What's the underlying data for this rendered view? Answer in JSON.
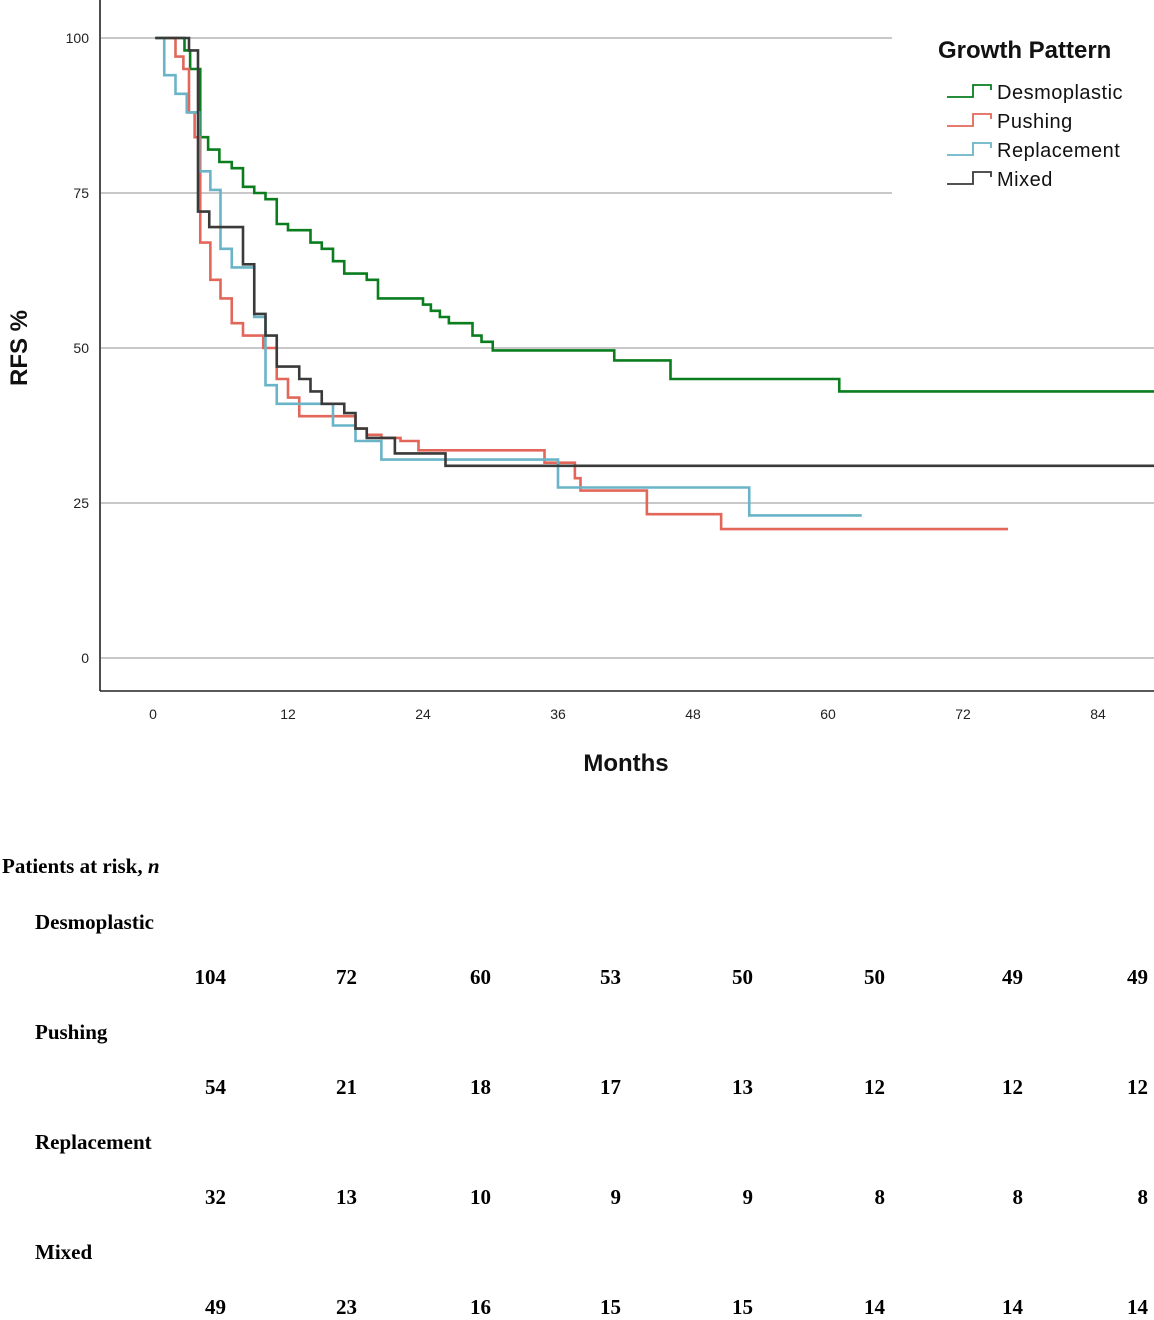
{
  "chart_data": {
    "type": "line",
    "subtype": "kaplan-meier-step",
    "title": "",
    "xlabel": "Months",
    "ylabel": "RFS %",
    "xlim": [
      -4.5,
      89
    ],
    "ylim": [
      -5,
      105
    ],
    "x_ticks": [
      0,
      12,
      24,
      36,
      48,
      60,
      72,
      84
    ],
    "y_ticks": [
      0,
      25,
      50,
      75,
      100
    ],
    "grid": "horizontal",
    "legend": {
      "title": "Growth Pattern",
      "placement": "top-right"
    },
    "series": [
      {
        "name": "Desmoplastic",
        "color": "#0a7d1e",
        "steps": [
          [
            0.2,
            100
          ],
          [
            2.8,
            98
          ],
          [
            3.3,
            95
          ],
          [
            4.2,
            84
          ],
          [
            4.9,
            82
          ],
          [
            5.9,
            80
          ],
          [
            7.0,
            79
          ],
          [
            8.0,
            76
          ],
          [
            9.0,
            75
          ],
          [
            10.0,
            74
          ],
          [
            11.0,
            70
          ],
          [
            12.0,
            69
          ],
          [
            14.0,
            67
          ],
          [
            15.0,
            66
          ],
          [
            16.0,
            64
          ],
          [
            17.0,
            62
          ],
          [
            19.0,
            61
          ],
          [
            20.0,
            58
          ],
          [
            24.0,
            57
          ],
          [
            24.7,
            56
          ],
          [
            25.5,
            55
          ],
          [
            26.3,
            54
          ],
          [
            28.4,
            52
          ],
          [
            29.2,
            51
          ],
          [
            30.2,
            49.6
          ],
          [
            41.0,
            48
          ],
          [
            46.0,
            45
          ],
          [
            61.0,
            43
          ],
          [
            89.0,
            43
          ]
        ]
      },
      {
        "name": "Pushing",
        "color": "#e2675a",
        "steps": [
          [
            1.0,
            100
          ],
          [
            2.0,
            97
          ],
          [
            2.7,
            95
          ],
          [
            3.2,
            88
          ],
          [
            3.7,
            84
          ],
          [
            4.2,
            67
          ],
          [
            5.1,
            61
          ],
          [
            6.0,
            58
          ],
          [
            7.0,
            54
          ],
          [
            8.0,
            52
          ],
          [
            9.8,
            50
          ],
          [
            11.0,
            45
          ],
          [
            12.0,
            42
          ],
          [
            13.0,
            39
          ],
          [
            18.0,
            37
          ],
          [
            19.0,
            36
          ],
          [
            20.3,
            35.5
          ],
          [
            22.0,
            35
          ],
          [
            23.6,
            33.5
          ],
          [
            34.8,
            31.5
          ],
          [
            37.5,
            29
          ],
          [
            38.0,
            27
          ],
          [
            43.9,
            23.2
          ],
          [
            50.5,
            20.8
          ],
          [
            76.0,
            20.8
          ]
        ]
      },
      {
        "name": "Replacement",
        "color": "#6ab4c8",
        "steps": [
          [
            0.7,
            100
          ],
          [
            1.0,
            94
          ],
          [
            2.0,
            91
          ],
          [
            3.0,
            88
          ],
          [
            4.1,
            78.5
          ],
          [
            5.1,
            75.5
          ],
          [
            6.0,
            66
          ],
          [
            7.0,
            63
          ],
          [
            9.0,
            55
          ],
          [
            10.0,
            44
          ],
          [
            11.0,
            41
          ],
          [
            16.0,
            37.5
          ],
          [
            18.0,
            35
          ],
          [
            20.3,
            32
          ],
          [
            36.0,
            27.5
          ],
          [
            53.0,
            23
          ],
          [
            63.0,
            23
          ]
        ]
      },
      {
        "name": "Mixed",
        "color": "#3a3a3a",
        "steps": [
          [
            0.2,
            100
          ],
          [
            3.2,
            98
          ],
          [
            4.0,
            72
          ],
          [
            5.0,
            69.5
          ],
          [
            8.0,
            63.5
          ],
          [
            9.0,
            55.5
          ],
          [
            10.0,
            52
          ],
          [
            11.0,
            47
          ],
          [
            13.0,
            45
          ],
          [
            14.0,
            43
          ],
          [
            15.0,
            41
          ],
          [
            17.0,
            39.5
          ],
          [
            18.0,
            37
          ],
          [
            19.0,
            35.5
          ],
          [
            21.5,
            33
          ],
          [
            26.0,
            31
          ],
          [
            89.0,
            31
          ]
        ]
      }
    ],
    "risk_table": {
      "title": "Patients at risk, ",
      "title_italic": "n",
      "columns": [
        "0",
        "12",
        "24",
        "36",
        "48",
        "60",
        "72",
        "84"
      ],
      "rows": [
        {
          "label": "Desmoplastic",
          "values": [
            "104",
            "72",
            "60",
            "53",
            "50",
            "50",
            "49",
            "49"
          ]
        },
        {
          "label": "Pushing",
          "values": [
            "54",
            "21",
            "18",
            "17",
            "13",
            "12",
            "12",
            "12"
          ]
        },
        {
          "label": "Replacement",
          "values": [
            "32",
            "13",
            "10",
            "9",
            "9",
            "8",
            "8",
            "8"
          ]
        },
        {
          "label": "Mixed",
          "values": [
            "49",
            "23",
            "16",
            "15",
            "15",
            "14",
            "14",
            "14"
          ]
        }
      ]
    }
  }
}
